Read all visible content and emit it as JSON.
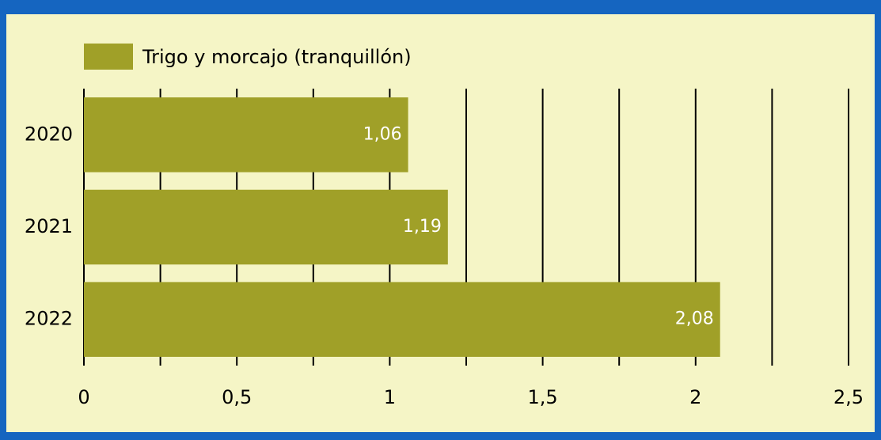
{
  "chart_data": {
    "type": "bar",
    "orientation": "horizontal",
    "categories": [
      "2020",
      "2021",
      "2022"
    ],
    "series": [
      {
        "name": "Trigo y morcajo (tranquillón)",
        "color": "#a0a028",
        "values": [
          1.06,
          1.19,
          2.08
        ],
        "value_labels": [
          "1,06",
          "1,19",
          "2,08"
        ]
      }
    ],
    "xlim": [
      0,
      2.5
    ],
    "xticks": [
      0,
      {
        "value": 0.5,
        "label": "0,5"
      },
      1,
      {
        "value": 1.5,
        "label": "1,5"
      },
      2,
      {
        "value": 2.5,
        "label": "2,5"
      }
    ],
    "minor_xticks": [
      0.25,
      0.75,
      1.25,
      1.75,
      2.25
    ],
    "grid": true,
    "legend": "top"
  }
}
